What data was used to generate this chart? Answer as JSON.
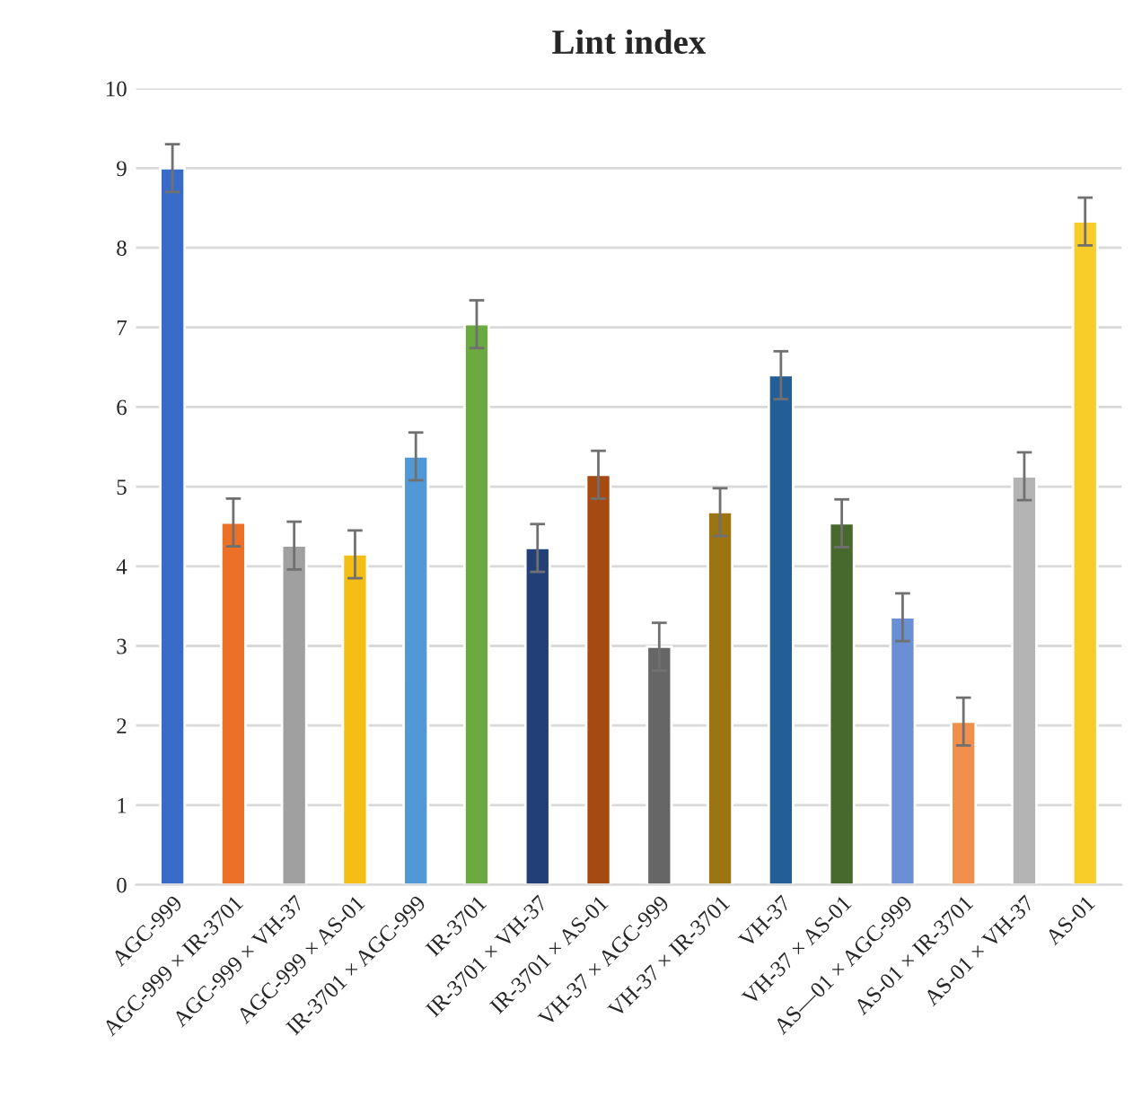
{
  "chart_data": {
    "type": "bar",
    "title": "Lint index",
    "categories": [
      "AGC-999",
      "AGC-999 × IR-3701",
      "AGC-999 × VH-37",
      "AGC-999 × AS-01",
      "IR-3701 × AGC-999",
      "IR-3701",
      "IR-3701 × VH-37",
      "IR-3701 × AS-01",
      "VH-37 × AGC-999",
      "VH-37 × IR-3701",
      "VH-37",
      "VH-37 × AS-01",
      "AS—01 × AGC-999",
      "AS-01 × IR-3701",
      "AS-01 × VH-37",
      "AS-01"
    ],
    "values": [
      9.0,
      4.55,
      4.26,
      4.15,
      5.38,
      7.04,
      4.23,
      5.15,
      2.99,
      4.68,
      6.4,
      4.54,
      3.36,
      2.05,
      5.13,
      8.33
    ],
    "errors": [
      0.3,
      0.3,
      0.3,
      0.3,
      0.3,
      0.3,
      0.3,
      0.3,
      0.3,
      0.3,
      0.3,
      0.3,
      0.3,
      0.3,
      0.3,
      0.3
    ],
    "colors": [
      "#3a6bc8",
      "#ec7126",
      "#a0a0a0",
      "#f5be14",
      "#5199d6",
      "#6aaa40",
      "#233f78",
      "#a54a12",
      "#666666",
      "#9c7510",
      "#245e96",
      "#47692e",
      "#6a8fd4",
      "#f0904c",
      "#b4b4b4",
      "#f8cd2a"
    ],
    "ylim": [
      0,
      10
    ],
    "yticks": [
      0,
      1,
      2,
      3,
      4,
      5,
      6,
      7,
      8,
      9,
      10
    ],
    "grid": "y",
    "legend": false
  }
}
